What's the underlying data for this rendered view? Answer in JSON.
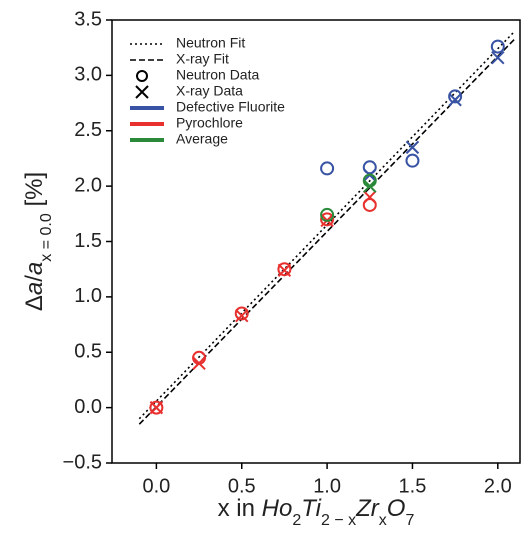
{
  "chart_data": {
    "type": "scatter",
    "x_label": [
      {
        "text": "x in "
      },
      {
        "text": "Ho",
        "style": "italic"
      },
      {
        "text": "2",
        "style": "sub"
      },
      {
        "text": "Ti",
        "style": "italic"
      },
      {
        "text": "2 − x",
        "style": "sub"
      },
      {
        "text": "Zr",
        "style": "italic"
      },
      {
        "text": "x",
        "style": "sub"
      },
      {
        "text": "O",
        "style": "italic"
      },
      {
        "text": "7",
        "style": "sub"
      }
    ],
    "y_label": [
      {
        "text": "Δ"
      },
      {
        "text": "a",
        "style": "italic"
      },
      {
        "text": "/"
      },
      {
        "text": "a",
        "style": "italic"
      },
      {
        "text": "x = 0.0",
        "style": "sub"
      },
      {
        "text": " [%]"
      }
    ],
    "xlim": [
      -0.26,
      2.13
    ],
    "ylim": [
      -0.5,
      3.5
    ],
    "xticks": [
      {
        "value": 0,
        "label": "0.0"
      },
      {
        "value": 0.5,
        "label": "0.5"
      },
      {
        "value": 1,
        "label": "1.0"
      },
      {
        "value": 1.5,
        "label": "1.5"
      },
      {
        "value": 2,
        "label": "2.0"
      }
    ],
    "yticks": [
      {
        "value": -0.5,
        "label": "−0.5"
      },
      {
        "value": 0,
        "label": "0.0"
      },
      {
        "value": 0.5,
        "label": "0.5"
      },
      {
        "value": 1,
        "label": "1.0"
      },
      {
        "value": 1.5,
        "label": "1.5"
      },
      {
        "value": 2,
        "label": "2.0"
      },
      {
        "value": 2.5,
        "label": "2.5"
      },
      {
        "value": 3,
        "label": "3.0"
      },
      {
        "value": 3.5,
        "label": "3.5"
      }
    ],
    "fits": [
      {
        "name": "Neutron Fit",
        "dash": "dotted",
        "color": "#000000",
        "x": [
          -0.1,
          2.1
        ],
        "y": [
          -0.1,
          3.4
        ]
      },
      {
        "name": "X-ray Fit",
        "dash": "dashed",
        "color": "#000000",
        "x": [
          -0.1,
          2.1
        ],
        "y": [
          -0.15,
          3.33
        ]
      }
    ],
    "markers": [
      {
        "name": "Neutron Data",
        "marker": "circle"
      },
      {
        "name": "X-ray Data",
        "marker": "cross"
      }
    ],
    "phases": [
      {
        "name": "Defective Fluorite",
        "color": "#3953a4",
        "neutron": {
          "x": [
            1,
            1.25,
            1.5,
            1.75,
            2
          ],
          "y": [
            2.16,
            2.17,
            2.23,
            2.81,
            3.26
          ]
        },
        "xray": {
          "x": [
            1.25,
            1.5,
            1.75,
            2
          ],
          "y": [
            2.1,
            2.35,
            2.78,
            3.16
          ]
        }
      },
      {
        "name": "Pyrochlore",
        "color": "#e8312f",
        "neutron": {
          "x": [
            0,
            0.25,
            0.5,
            0.75,
            1,
            1.25
          ],
          "y": [
            0,
            0.45,
            0.85,
            1.25,
            1.7,
            1.83
          ]
        },
        "xray": {
          "x": [
            0,
            0.25,
            0.5,
            0.75,
            1,
            1.25
          ],
          "y": [
            0,
            0.4,
            0.83,
            1.24,
            1.69,
            1.9
          ]
        }
      },
      {
        "name": "Average",
        "color": "#2a8a3a",
        "neutron": {
          "x": [
            1,
            1.25
          ],
          "y": [
            1.74,
            2.05
          ]
        },
        "xray": {
          "x": [
            1.25
          ],
          "y": [
            2.0
          ]
        }
      }
    ]
  }
}
